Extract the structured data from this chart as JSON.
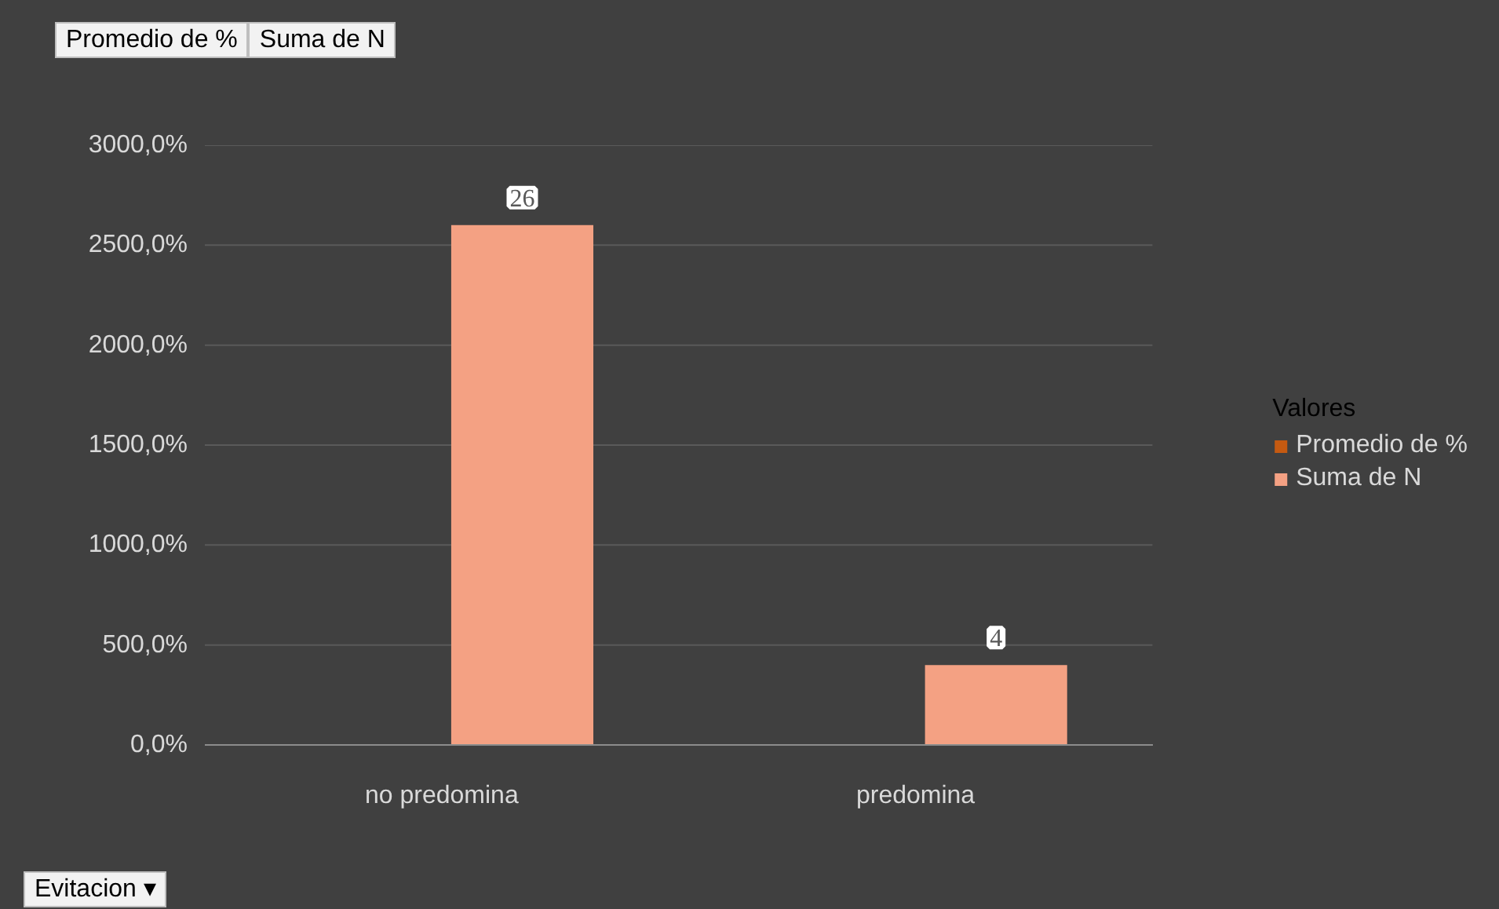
{
  "chart_data": {
    "type": "bar",
    "categories": [
      "no predomina",
      "predomina"
    ],
    "series": [
      {
        "name": "Promedio de %",
        "color": "#c55a11",
        "values": [
          null,
          null
        ]
      },
      {
        "name": "Suma de N",
        "color": "#f4a183",
        "values": [
          26,
          4
        ],
        "value_labels": [
          "26",
          "4"
        ]
      }
    ],
    "ylim": [
      0,
      30
    ],
    "yticks": [
      {
        "value": 0,
        "label": "0,0%"
      },
      {
        "value": 5,
        "label": "500,0%"
      },
      {
        "value": 10,
        "label": "1000,0%"
      },
      {
        "value": 15,
        "label": "1500,0%"
      },
      {
        "value": 20,
        "label": "2000,0%"
      },
      {
        "value": 25,
        "label": "2500,0%"
      },
      {
        "value": 30,
        "label": "3000,0%"
      }
    ],
    "grid": "y",
    "legend": "right",
    "legend_title": "Valores",
    "annotations": [
      "Promedio de %",
      "Suma de N",
      "Evitacion ▾"
    ]
  }
}
